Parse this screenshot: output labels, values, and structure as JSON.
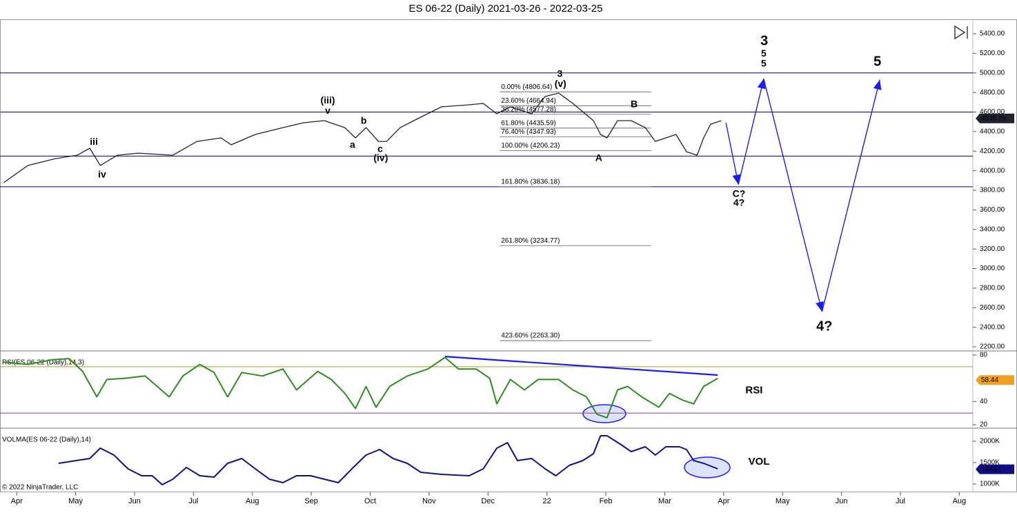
{
  "chart_data": [
    {
      "type": "line",
      "title": "ES 06-22 (Daily)  2021-03-26 - 2022-03-25",
      "xlim": [
        -0.26,
        16.23
      ],
      "xticks": [
        {
          "value": 0,
          "label": "Apr"
        },
        {
          "value": 1,
          "label": "May"
        },
        {
          "value": 2,
          "label": "Jun"
        },
        {
          "value": 3,
          "label": "Jul"
        },
        {
          "value": 4,
          "label": "Aug"
        },
        {
          "value": 5,
          "label": "Sep"
        },
        {
          "value": 6,
          "label": "Oct"
        },
        {
          "value": 7,
          "label": "Nov"
        },
        {
          "value": 8,
          "label": "Dec"
        },
        {
          "value": 9,
          "label": "22"
        },
        {
          "value": 10,
          "label": "Feb"
        },
        {
          "value": 11,
          "label": "Mar"
        },
        {
          "value": 12,
          "label": "Apr"
        },
        {
          "value": 13,
          "label": "May"
        },
        {
          "value": 14,
          "label": "Jun"
        },
        {
          "value": 15,
          "label": "Jul"
        },
        {
          "value": 16,
          "label": "Aug"
        }
      ],
      "ylim": [
        2165,
        5548
      ],
      "yticks": [
        {
          "value": 2200,
          "label": "2200.00"
        },
        {
          "value": 2400,
          "label": "2400.00"
        },
        {
          "value": 2600,
          "label": "2600.00"
        },
        {
          "value": 2800,
          "label": "2800.00"
        },
        {
          "value": 3000,
          "label": "3000.00"
        },
        {
          "value": 3200,
          "label": "3200.00"
        },
        {
          "value": 3400,
          "label": "3400.00"
        },
        {
          "value": 3600,
          "label": "3600.00"
        },
        {
          "value": 3800,
          "label": "3800.00"
        },
        {
          "value": 4000,
          "label": "4000.00"
        },
        {
          "value": 4200,
          "label": "4200.00"
        },
        {
          "value": 4400,
          "label": "4400.00"
        },
        {
          "value": 4600,
          "label": "4600.00"
        },
        {
          "value": 4800,
          "label": "4800.00"
        },
        {
          "value": 5000,
          "label": "5000.00"
        },
        {
          "value": 5200,
          "label": "5200.00"
        },
        {
          "value": 5400,
          "label": "5400.00"
        }
      ],
      "series": [
        {
          "color": "#222222",
          "x": [
            -0.22,
            0.19,
            0.66,
            1.03,
            1.24,
            1.42,
            1.71,
            2.06,
            2.65,
            3.06,
            3.47,
            3.64,
            4.05,
            4.52,
            4.87,
            5.22,
            5.57,
            5.75,
            5.93,
            6.14,
            6.28,
            6.51,
            6.74,
            7.21,
            7.68,
            7.92,
            8.15,
            8.38,
            8.74,
            8.97,
            9.2,
            9.44,
            9.79,
            9.91,
            10.02,
            10.2,
            10.43,
            10.67,
            10.84,
            11.02,
            11.19,
            11.37,
            11.55,
            11.66,
            11.78,
            11.96
          ],
          "values": [
            3878,
            4054,
            4124,
            4159,
            4230,
            4054,
            4159,
            4180,
            4159,
            4300,
            4336,
            4265,
            4371,
            4441,
            4491,
            4512,
            4441,
            4336,
            4441,
            4300,
            4300,
            4441,
            4512,
            4653,
            4674,
            4688,
            4582,
            4653,
            4582,
            4759,
            4794,
            4688,
            4512,
            4371,
            4336,
            4512,
            4512,
            4441,
            4300,
            4336,
            4371,
            4194,
            4159,
            4336,
            4477,
            4512
          ]
        }
      ],
      "projection": {
        "color": "#1a1aff",
        "x": [
          12.04,
          12.25,
          12.68,
          13.67,
          14.65
        ],
        "values": [
          4490,
          3860,
          4940,
          2560,
          4930
        ]
      },
      "hlines": {
        "color": "#00007a",
        "values": [
          5000,
          4600,
          4150,
          3836.18
        ]
      },
      "fib": {
        "x": [
          8.2,
          10.77
        ],
        "color": "#555577",
        "levels": [
          {
            "value": 4806.64,
            "label": "0.00% (4806.64)"
          },
          {
            "value": 4664.94,
            "label": "23.60% (4664.94)"
          },
          {
            "value": 4577.28,
            "label": "38.20% (4577.28)"
          },
          {
            "value": 4435.59,
            "label": "61.80% (4435.59)"
          },
          {
            "value": 4347.93,
            "label": "76.40% (4347.93)"
          },
          {
            "value": 4206.23,
            "label": "100.00% (4206.23)"
          },
          {
            "value": 3836.18,
            "label": "161.80% (3836.18)"
          },
          {
            "value": 3234.77,
            "label": "261.80% (3234.77)"
          },
          {
            "value": 2263.3,
            "label": "423.60% (2263.30)"
          }
        ]
      },
      "last_value": 4535.25,
      "last_color": "#1e2430",
      "annotations": [
        {
          "text": "iii",
          "x": 1.31,
          "y": 4293,
          "color": "#000000"
        },
        {
          "text": "iv",
          "x": 1.45,
          "y": 3955,
          "color": "#000000"
        },
        {
          "text": "(iii)",
          "x": 5.28,
          "y": 4716,
          "color": "#000000"
        },
        {
          "text": "v",
          "x": 5.28,
          "y": 4610,
          "color": "#000000"
        },
        {
          "text": "b",
          "x": 5.89,
          "y": 4505,
          "color": "#000000"
        },
        {
          "text": "a",
          "x": 5.7,
          "y": 4258,
          "color": "#000000"
        },
        {
          "text": "c",
          "x": 6.17,
          "y": 4216,
          "color": "#000000"
        },
        {
          "text": "(iv)",
          "x": 6.18,
          "y": 4124,
          "color": "#000000"
        },
        {
          "text": "3",
          "x": 9.22,
          "y": 4984,
          "color": "#000000"
        },
        {
          "text": "(v)",
          "x": 9.23,
          "y": 4885,
          "color": "#000000"
        },
        {
          "text": "B",
          "x": 10.48,
          "y": 4674,
          "color": "#000000"
        },
        {
          "text": "A",
          "x": 9.88,
          "y": 4124,
          "color": "#000000"
        },
        {
          "text": "C?",
          "x": 12.26,
          "y": 3758,
          "color": "#000000"
        },
        {
          "text": "4?",
          "x": 12.26,
          "y": 3666,
          "color": "#000000"
        },
        {
          "text": "3",
          "x": 12.69,
          "y": 5322,
          "color": "#e00000"
        },
        {
          "text": "5",
          "x": 12.68,
          "y": 5195,
          "color": "#0000cc"
        },
        {
          "text": "5",
          "x": 12.68,
          "y": 5090,
          "color": "#000000"
        },
        {
          "text": "5",
          "x": 14.61,
          "y": 5111,
          "color": "#e00000"
        },
        {
          "text": "4?",
          "x": 13.71,
          "y": 2404,
          "color": "#e00000"
        }
      ]
    },
    {
      "type": "line",
      "title": "RSI(ES 06-22 (Daily),14,3)",
      "ylim": [
        17.6,
        83
      ],
      "yticks": [
        20,
        40,
        80
      ],
      "levels": [
        {
          "value": 70,
          "color": "#a0a020"
        },
        {
          "value": 30,
          "color": "#9a2a8a"
        }
      ],
      "series": [
        {
          "color": "#2e8b1e",
          "x": [
            -0.22,
            0.19,
            0.6,
            0.89,
            1.12,
            1.36,
            1.53,
            1.83,
            2.18,
            2.59,
            2.82,
            3.11,
            3.35,
            3.58,
            3.82,
            4.17,
            4.52,
            4.75,
            5.11,
            5.34,
            5.57,
            5.75,
            5.93,
            6.1,
            6.33,
            6.63,
            6.98,
            7.27,
            7.5,
            7.8,
            8.03,
            8.15,
            8.38,
            8.62,
            8.85,
            9.2,
            9.44,
            9.67,
            9.85,
            10.02,
            10.2,
            10.37,
            10.61,
            10.9,
            11.08,
            11.31,
            11.49,
            11.66,
            11.9
          ],
          "values": [
            74,
            72,
            76,
            77,
            66,
            44,
            59,
            60,
            62,
            44,
            62,
            72,
            65,
            44,
            65,
            62,
            68,
            50,
            66,
            59,
            47,
            34,
            53,
            35,
            53,
            62,
            68,
            78,
            68,
            68,
            60,
            38,
            59,
            50,
            59,
            59,
            50,
            44,
            29,
            26,
            50,
            53,
            44,
            35,
            47,
            41,
            38,
            53,
            60
          ]
        }
      ],
      "projection": {
        "color": "#1a1aff",
        "x": [
          7.27,
          11.9
        ],
        "values": [
          78.8,
          62.8
        ]
      },
      "last_value": 58.44,
      "last_color": "#f0a020",
      "annotations": [
        {
          "text": "RSI",
          "x": 12.37,
          "y": 49.5,
          "color": "#000000"
        }
      ]
    },
    {
      "type": "line",
      "title": "VOLMA(ES 06-22 (Daily),14)",
      "ylim": [
        839000,
        2290000
      ],
      "yticks": [
        {
          "value": 1000000,
          "label": "1000K"
        },
        {
          "value": 1500000,
          "label": "1500K"
        },
        {
          "value": 2000000,
          "label": "2000K"
        }
      ],
      "series": [
        {
          "color": "#101080",
          "x": [
            0.71,
            1.01,
            1.24,
            1.42,
            1.65,
            1.89,
            2.12,
            2.3,
            2.47,
            2.65,
            2.88,
            3.11,
            3.35,
            3.58,
            3.82,
            4.05,
            4.29,
            4.52,
            4.75,
            4.99,
            5.22,
            5.46,
            5.69,
            5.93,
            6.16,
            6.39,
            6.63,
            6.86,
            7.21,
            7.68,
            7.92,
            8.15,
            8.33,
            8.5,
            8.74,
            8.97,
            9.15,
            9.38,
            9.61,
            9.79,
            9.91,
            10.02,
            10.26,
            10.43,
            10.67,
            10.84,
            11.02,
            11.25,
            11.37,
            11.49,
            11.66,
            11.9
          ],
          "values": [
            1484000,
            1548000,
            1597000,
            1839000,
            1677000,
            1355000,
            1194000,
            1194000,
            984000,
            1113000,
            1387000,
            1194000,
            1161000,
            1484000,
            1597000,
            1355000,
            1113000,
            1032000,
            1194000,
            1194000,
            1113000,
            1032000,
            1355000,
            1677000,
            1806000,
            1597000,
            1484000,
            1274000,
            1226000,
            1194000,
            1355000,
            1839000,
            1968000,
            1548000,
            1597000,
            1355000,
            1194000,
            1435000,
            1548000,
            1710000,
            2129000,
            2129000,
            1919000,
            1758000,
            1871000,
            1677000,
            1871000,
            1871000,
            1806000,
            1548000,
            1484000,
            1355000
          ]
        }
      ],
      "last_value": 1345000,
      "last_value_label": "1345K",
      "last_color": "#101080",
      "annotations": [
        {
          "text": "VOL",
          "x": 12.42,
          "y": 1516000,
          "color": "#000000"
        }
      ],
      "credit": "© 2022 NinjaTrader, LLC"
    }
  ]
}
